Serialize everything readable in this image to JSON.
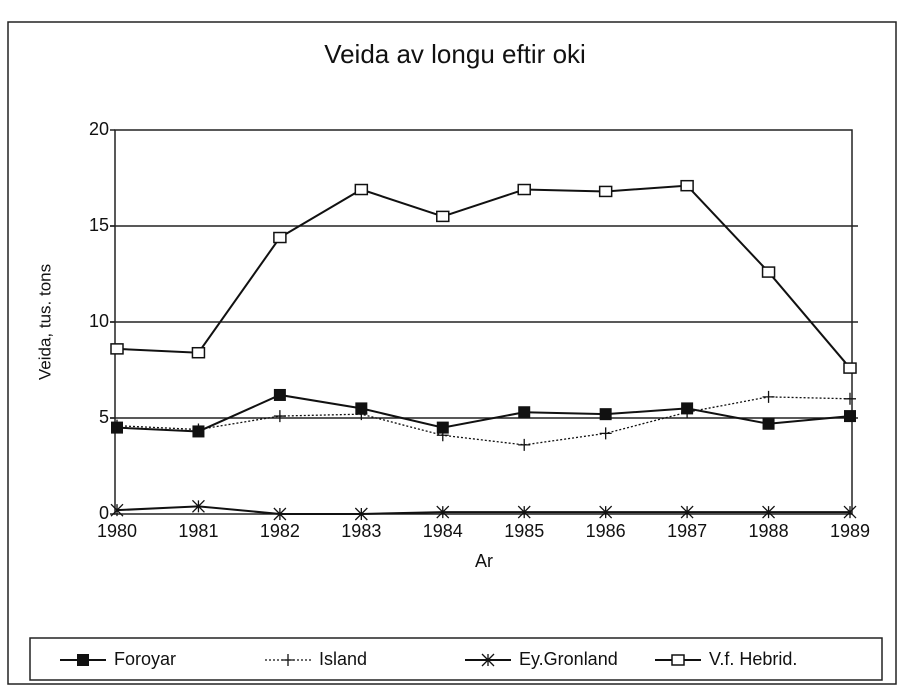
{
  "chart_data": {
    "type": "line",
    "title": "Veida av longu eftir oki",
    "x_label": "Ar",
    "y_label": "Veida, tus. tons",
    "categories": [
      "1980",
      "1981",
      "1982",
      "1983",
      "1984",
      "1985",
      "1986",
      "1987",
      "1988",
      "1989"
    ],
    "ylim": [
      0,
      20
    ],
    "yticks": [
      0,
      5,
      10,
      15,
      20
    ],
    "grid": true,
    "legend": "bottom",
    "series": [
      {
        "name": "Foroyar",
        "color": "#111111",
        "line_style": "solid",
        "marker": "filled-square",
        "values": [
          4.5,
          4.3,
          6.2,
          5.5,
          4.5,
          5.3,
          5.2,
          5.5,
          4.7,
          5.1
        ]
      },
      {
        "name": "Island",
        "color": "#111111",
        "line_style": "dotted",
        "marker": "plus",
        "values": [
          4.6,
          4.4,
          5.1,
          5.2,
          4.1,
          3.6,
          4.2,
          5.3,
          6.1,
          6.0
        ]
      },
      {
        "name": "Ey.Gronland",
        "color": "#111111",
        "line_style": "solid",
        "marker": "asterisk",
        "values": [
          0.2,
          0.4,
          0,
          0,
          0.1,
          0.1,
          0.1,
          0.1,
          0.1,
          0.1
        ]
      },
      {
        "name": "V.f. Hebrid.",
        "color": "#111111",
        "line_style": "solid",
        "marker": "open-square",
        "values": [
          8.6,
          8.4,
          14.4,
          16.9,
          15.5,
          16.9,
          16.8,
          17.1,
          12.6,
          7.6
        ]
      }
    ]
  }
}
